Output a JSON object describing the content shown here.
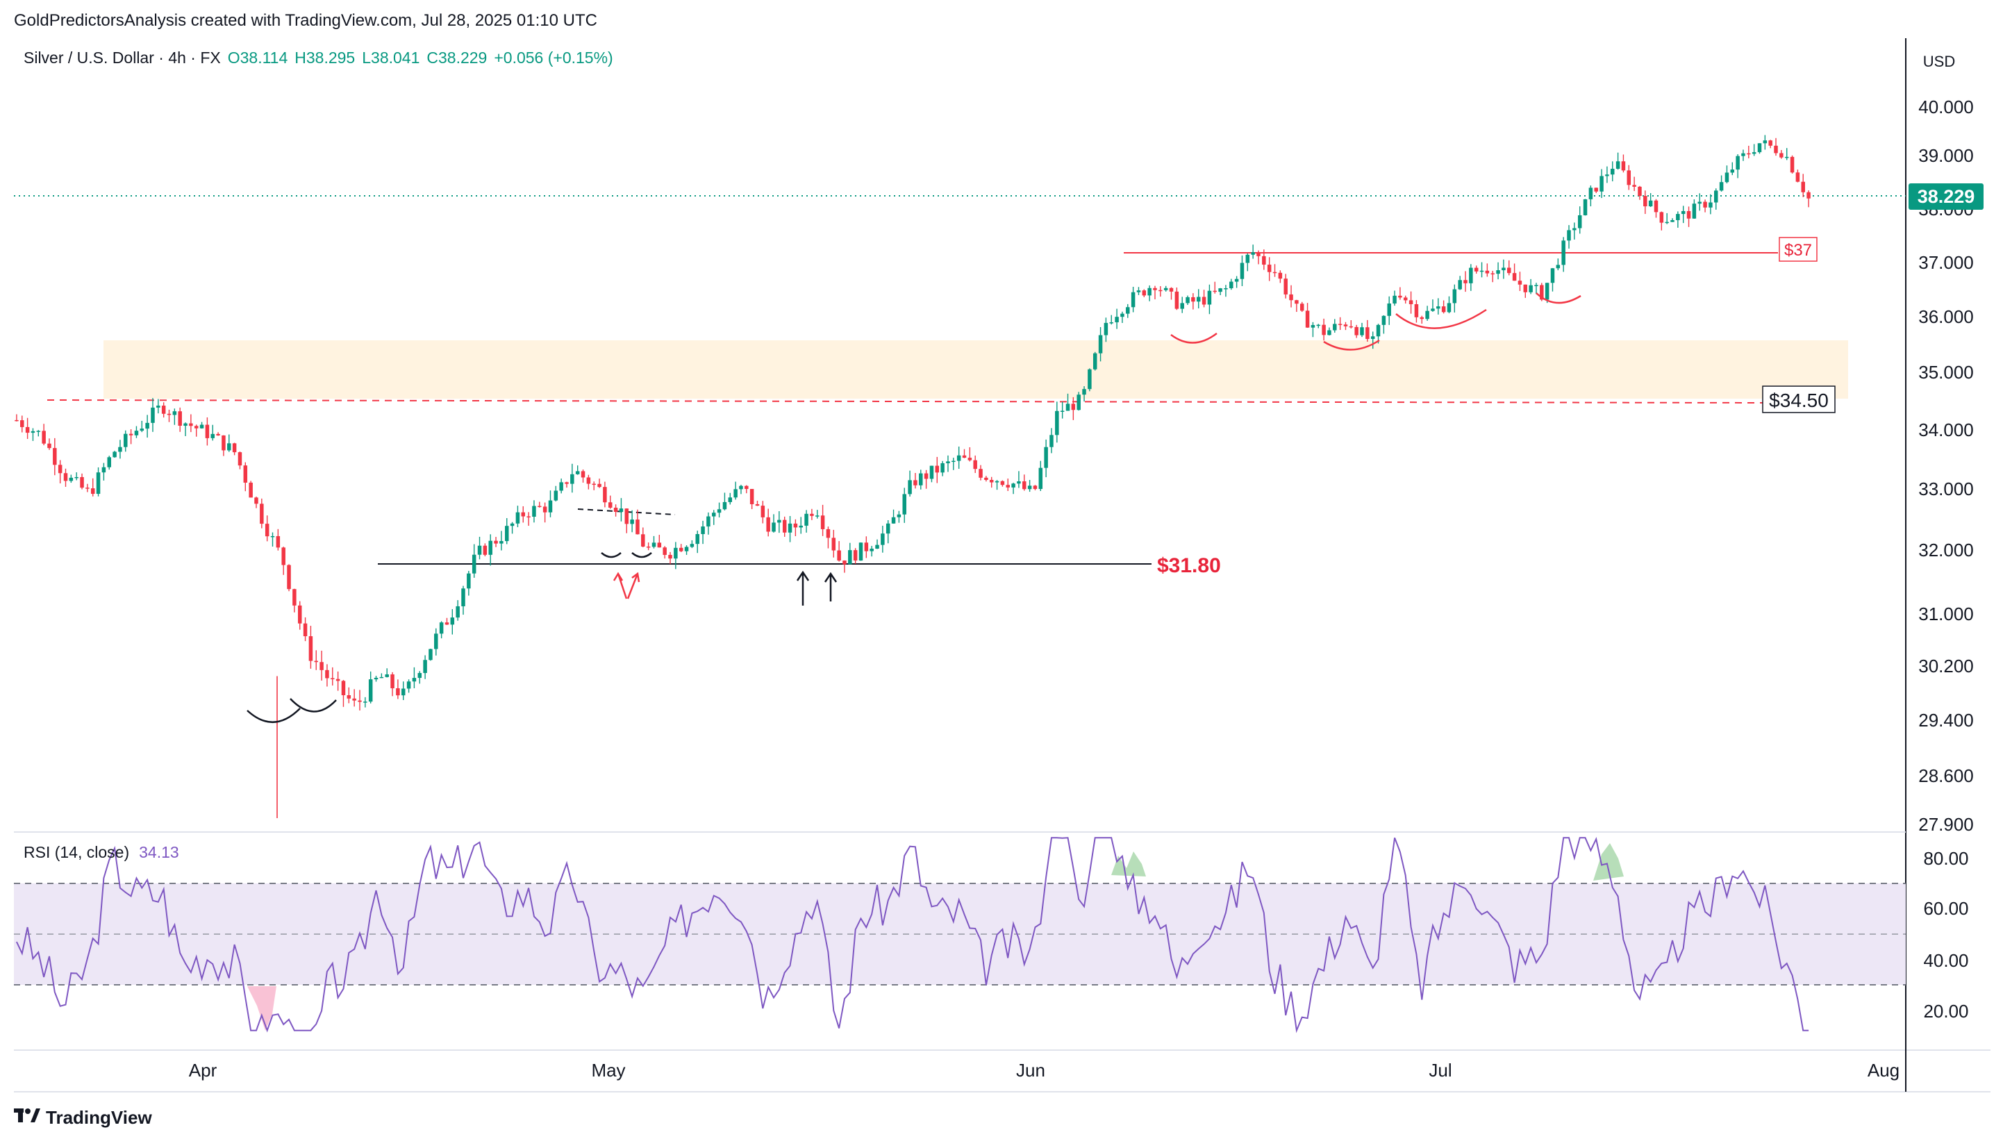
{
  "header": {
    "attribution": "GoldPredictorsAnalysis created with TradingView.com, Jul 28, 2025 01:10 UTC"
  },
  "legend": {
    "symbol": "Silver / U.S. Dollar · 4h · FX",
    "open": "O38.114",
    "high": "H38.295",
    "low": "L38.041",
    "close": "C38.229",
    "change": "+0.056 (+0.15%)"
  },
  "price_axis": {
    "currency": "USD",
    "ticks": [
      "40.000",
      "39.000",
      "38.000",
      "37.000",
      "36.000",
      "35.000",
      "34.000",
      "33.000",
      "32.000",
      "31.000",
      "30.200",
      "29.400",
      "28.600",
      "27.900"
    ],
    "last_price": "38.229"
  },
  "rsi": {
    "label": "RSI (14, close)",
    "value": "34.13",
    "ticks": [
      "80.00",
      "60.00",
      "40.00",
      "20.00"
    ]
  },
  "time_axis": {
    "labels": [
      "Apr",
      "May",
      "Jun",
      "Jul",
      "Aug"
    ]
  },
  "annotations": {
    "resistance_label": "$37",
    "support_zone_label": "$34.50",
    "support_label": "$31.80"
  },
  "footer": {
    "brand": "TradingView"
  },
  "colors": {
    "up": "#089981",
    "down": "#f23645",
    "price_line": "#089981",
    "rsi_line": "#7e57c2",
    "rsi_band": "#ede7f6",
    "zone": "#fff3e0",
    "annotation_red": "#e8243a"
  },
  "chart_data": {
    "type": "candlestick",
    "timeframe": "4h",
    "ylim": [
      27.9,
      40.3
    ],
    "scale": "log",
    "last": 38.229,
    "levels": [
      {
        "label": "$37",
        "value": 37.2
      },
      {
        "label": "$34.50",
        "value": 34.5
      },
      {
        "label": "$31.80",
        "value": 31.8
      }
    ],
    "support_zone": [
      34.6,
      35.55
    ],
    "price_path": [
      [
        "Mar 20",
        34.15
      ],
      [
        "Mar 22",
        33.9
      ],
      [
        "Mar 24",
        33.2
      ],
      [
        "Mar 25",
        32.9
      ],
      [
        "Mar 27",
        33.6
      ],
      [
        "Mar 28",
        34.0
      ],
      [
        "Mar 29",
        34.4
      ],
      [
        "Mar 31",
        34.1
      ],
      [
        "Apr 1",
        33.9
      ],
      [
        "Apr 2",
        33.6
      ],
      [
        "Apr 3",
        32.6
      ],
      [
        "Apr 4",
        31.8
      ],
      [
        "Apr 5",
        30.4
      ],
      [
        "Apr 6",
        29.9
      ],
      [
        "Apr 7",
        29.55
      ],
      [
        "Apr 8",
        30.0
      ],
      [
        "Apr 9",
        29.7
      ],
      [
        "Apr 10",
        30.4
      ],
      [
        "Apr 11",
        31.0
      ],
      [
        "Apr 14",
        31.9
      ],
      [
        "Apr 16",
        32.2
      ],
      [
        "Apr 18",
        32.6
      ],
      [
        "Apr 21",
        32.7
      ],
      [
        "Apr 23",
        33.3
      ],
      [
        "Apr 25",
        33.0
      ],
      [
        "Apr 28",
        32.6
      ],
      [
        "Apr 30",
        32.0
      ],
      [
        "May 1",
        31.95
      ],
      [
        "May 3",
        32.2
      ],
      [
        "May 5",
        32.7
      ],
      [
        "May 7",
        33.0
      ],
      [
        "May 9",
        32.4
      ],
      [
        "May 12",
        32.3
      ],
      [
        "May 14",
        32.7
      ],
      [
        "May 15",
        31.8
      ],
      [
        "May 16",
        32.0
      ],
      [
        "May 19",
        32.3
      ],
      [
        "May 21",
        33.1
      ],
      [
        "May 22",
        33.3
      ],
      [
        "May 23",
        33.5
      ],
      [
        "May 26",
        33.2
      ],
      [
        "May 28",
        33.1
      ],
      [
        "May 30",
        32.9
      ],
      [
        "Jun 2",
        34.3
      ],
      [
        "Jun 4",
        34.5
      ],
      [
        "Jun 5",
        35.9
      ],
      [
        "Jun 6",
        36.3
      ],
      [
        "Jun 9",
        36.6
      ],
      [
        "Jun 11",
        36.2
      ],
      [
        "Jun 13",
        36.3
      ],
      [
        "Jun 16",
        36.5
      ],
      [
        "Jun 17",
        37.2
      ],
      [
        "Jun 18",
        36.8
      ],
      [
        "Jun 20",
        36.0
      ],
      [
        "Jun 23",
        35.7
      ],
      [
        "Jun 24",
        35.9
      ],
      [
        "Jun 25",
        35.5
      ],
      [
        "Jun 27",
        36.5
      ],
      [
        "Jun 30",
        36.0
      ],
      [
        "Jul 2",
        36.2
      ],
      [
        "Jul 4",
        36.8
      ],
      [
        "Jul 7",
        36.9
      ],
      [
        "Jul 9",
        36.6
      ],
      [
        "Jul 10",
        36.4
      ],
      [
        "Jul 11",
        37.4
      ],
      [
        "Jul 13",
        38.3
      ],
      [
        "Jul 14",
        38.9
      ],
      [
        "Jul 15",
        38.3
      ],
      [
        "Jul 17",
        37.8
      ],
      [
        "Jul 18",
        37.9
      ],
      [
        "Jul 21",
        38.2
      ],
      [
        "Jul 22",
        38.9
      ],
      [
        "Jul 23",
        39.3
      ],
      [
        "Jul 24",
        39.1
      ],
      [
        "Jul 25",
        38.2
      ]
    ]
  }
}
